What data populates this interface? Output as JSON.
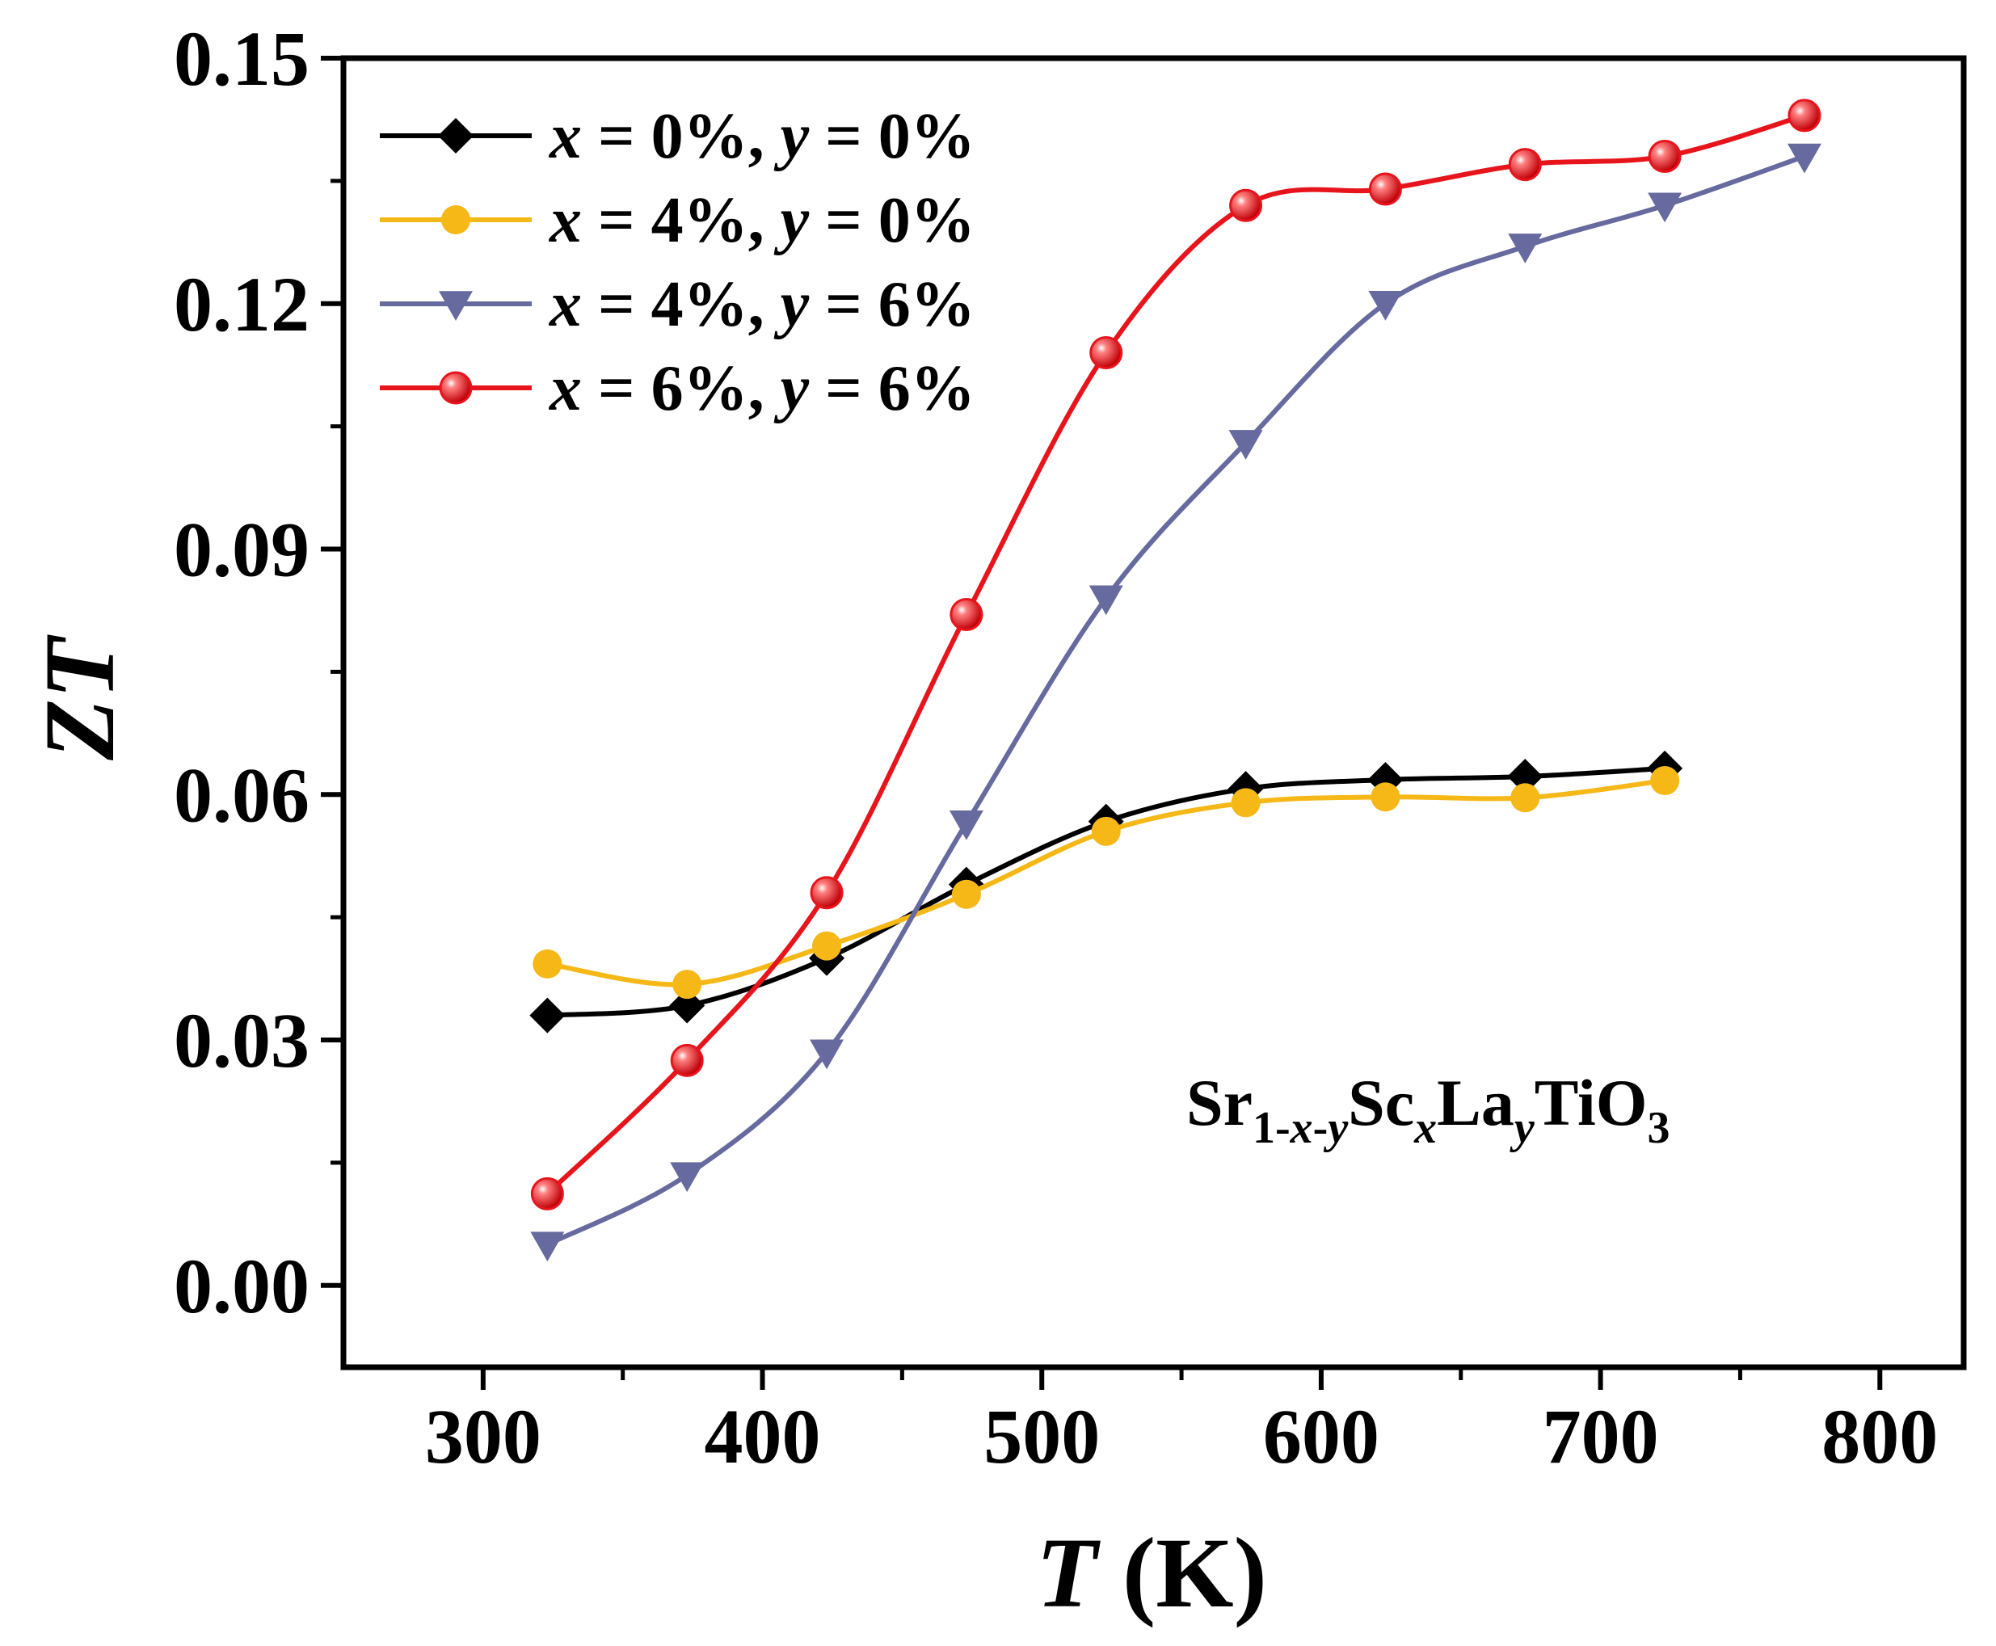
{
  "chart_data": {
    "type": "line",
    "title": "",
    "xlabel": {
      "italic": "T",
      "rest": " (K)"
    },
    "ylabel": "ZT",
    "xlim": [
      250,
      830
    ],
    "ylim": [
      -0.01,
      0.15
    ],
    "xticks": [
      300,
      400,
      500,
      600,
      700,
      800
    ],
    "yticks": [
      0.0,
      0.03,
      0.06,
      0.09,
      0.12,
      0.15
    ],
    "xtick_labels": [
      "300",
      "400",
      "500",
      "600",
      "700",
      "800"
    ],
    "ytick_labels": [
      "0.00",
      "0.03",
      "0.06",
      "0.09",
      "0.12",
      "0.15"
    ],
    "grid": false,
    "legend_position": "top-left",
    "series": [
      {
        "label": {
          "x": "0%",
          "y": "0%"
        },
        "color": "#000000",
        "marker": "diamond",
        "x": [
          323,
          373,
          423,
          473,
          523,
          573,
          623,
          673,
          723
        ],
        "y": [
          0.033,
          0.0342,
          0.04,
          0.049,
          0.0567,
          0.0607,
          0.0618,
          0.0622,
          0.0632
        ]
      },
      {
        "label": {
          "x": "4%",
          "y": "0%"
        },
        "color": "#F6B817",
        "marker": "circle",
        "x": [
          323,
          373,
          423,
          473,
          523,
          573,
          623,
          673,
          723
        ],
        "y": [
          0.0393,
          0.0368,
          0.0415,
          0.0478,
          0.0555,
          0.059,
          0.0597,
          0.0596,
          0.0617
        ]
      },
      {
        "label": {
          "x": "4%",
          "y": "6%"
        },
        "color": "#676A9E",
        "marker": "triangle-down",
        "x": [
          323,
          373,
          423,
          473,
          523,
          573,
          623,
          673,
          723,
          773
        ],
        "y": [
          0.005,
          0.0135,
          0.0285,
          0.0565,
          0.084,
          0.103,
          0.12,
          0.127,
          0.132,
          0.138
        ]
      },
      {
        "label": {
          "x": "6%",
          "y": "6%"
        },
        "color": "#E8141C",
        "marker": "sphere",
        "x": [
          323,
          373,
          423,
          473,
          523,
          573,
          623,
          673,
          723,
          773
        ],
        "y": [
          0.0112,
          0.0275,
          0.048,
          0.082,
          0.114,
          0.132,
          0.134,
          0.137,
          0.138,
          0.143
        ]
      }
    ],
    "legend_tokens": {
      "var_x": "x",
      "var_y": "y",
      "eq": " = ",
      "sep": ", "
    },
    "annotation": {
      "parts": [
        {
          "text": "Sr",
          "sub": false,
          "italic": false
        },
        {
          "text": "1-",
          "sub": true,
          "italic": false
        },
        {
          "text": "x",
          "sub": true,
          "italic": true
        },
        {
          "text": "-",
          "sub": true,
          "italic": false
        },
        {
          "text": "y",
          "sub": true,
          "italic": true
        },
        {
          "text": "Sc",
          "sub": false,
          "italic": false
        },
        {
          "text": "x",
          "sub": true,
          "italic": true
        },
        {
          "text": "La",
          "sub": false,
          "italic": false
        },
        {
          "text": "y",
          "sub": true,
          "italic": true
        },
        {
          "text": "TiO",
          "sub": false,
          "italic": false
        },
        {
          "text": "3",
          "sub": true,
          "italic": false
        }
      ]
    }
  }
}
